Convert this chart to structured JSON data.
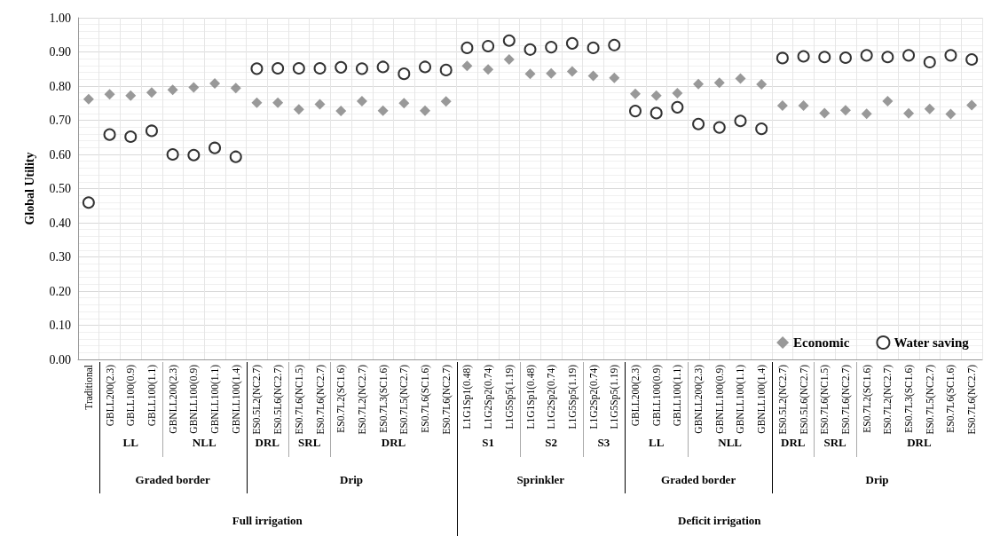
{
  "chart_data": {
    "type": "scatter",
    "ylabel": "Global Utility",
    "categories": [
      "Traditional",
      "GBLL200(2.3)",
      "GBLL100(0.9)",
      "GBLL100(1.1)",
      "GBNLL200(2.3)",
      "GBNLL100(0.9)",
      "GBNLL100(1.1)",
      "GBNLL100(1.4)",
      "ES0.5L2(NC2.7)",
      "ES0.5L6(NC2.7)",
      "ES0.7L6(NC1.5)",
      "ES0.7L6(NC2.7)",
      "ES0.7L2(SC1.6)",
      "ES0.7L2(NC2.7)",
      "ES0.7L3(SC1.6)",
      "ES0.7L5(NC2.7)",
      "ES0.7L6(SC1.6)",
      "ES0.7L6(NC2.7)",
      "L1G1Sp1(0.48)",
      "L1G2Sp2(0.74)",
      "L1G5Sp5(1.19)",
      "L1G1Sp1(0.48)",
      "L1G2Sp2(0.74)",
      "L1G5Sp5(1.19)",
      "L1G2Sp2(0.74)",
      "L1G5Sp5(1.19)",
      "GBLL200(2.3)",
      "GBLL100(0.9)",
      "GBLL100(1.1)",
      "GBNLL200(2.3)",
      "GBNLL100(0.9)",
      "GBNLL100(1.1)",
      "GBNLL100(1.4)",
      "ES0.5L2(NC2.7)",
      "ES0.5L6(NC2.7)",
      "ES0.7L6(NC1.5)",
      "ES0.7L6(NC2.7)",
      "ES0.7L2(SC1.6)",
      "ES0.7L2(NC2.7)",
      "ES0.7L3(SC1.6)",
      "ES0.7L5(NC2.7)",
      "ES0.7L6(SC1.6)",
      "ES0.7L6(NC2.7)"
    ],
    "series": [
      {
        "name": "Economic",
        "color": "#7f7f7f",
        "marker": "diamond",
        "values": [
          0.762,
          0.776,
          0.772,
          0.781,
          0.789,
          0.796,
          0.808,
          0.794,
          0.751,
          0.751,
          0.732,
          0.747,
          0.727,
          0.756,
          0.728,
          0.75,
          0.728,
          0.755,
          0.859,
          0.849,
          0.878,
          0.836,
          0.837,
          0.843,
          0.83,
          0.824,
          0.777,
          0.772,
          0.779,
          0.806,
          0.81,
          0.822,
          0.805,
          0.743,
          0.743,
          0.721,
          0.729,
          0.719,
          0.756,
          0.72,
          0.733,
          0.718,
          0.744
        ]
      },
      {
        "name": "Water saving",
        "color": "#000000",
        "marker": "circle",
        "values": [
          0.459,
          0.658,
          0.652,
          0.669,
          0.6,
          0.598,
          0.619,
          0.593,
          0.851,
          0.852,
          0.852,
          0.852,
          0.855,
          0.851,
          0.856,
          0.836,
          0.856,
          0.847,
          0.912,
          0.917,
          0.933,
          0.907,
          0.914,
          0.925,
          0.912,
          0.92,
          0.727,
          0.721,
          0.738,
          0.689,
          0.679,
          0.698,
          0.675,
          0.882,
          0.887,
          0.885,
          0.883,
          0.89,
          0.885,
          0.89,
          0.87,
          0.89,
          0.878
        ]
      }
    ],
    "ylim": [
      0,
      1
    ],
    "yticks": [
      {
        "value": 0,
        "label": "0.00"
      },
      {
        "value": 0.1,
        "label": "0.10"
      },
      {
        "value": 0.2,
        "label": "0.20"
      },
      {
        "value": 0.3,
        "label": "0.30"
      },
      {
        "value": 0.4,
        "label": "0.40"
      },
      {
        "value": 0.5,
        "label": "0.50"
      },
      {
        "value": 0.6,
        "label": "0.60"
      },
      {
        "value": 0.7,
        "label": "0.70"
      },
      {
        "value": 0.8,
        "label": "0.80"
      },
      {
        "value": 0.9,
        "label": "0.90"
      },
      {
        "value": 1,
        "label": "1.00"
      }
    ],
    "grid": true,
    "legend": "bottom right",
    "annotations": [
      "LL",
      "NLL",
      "DRL",
      "SRL",
      "DRL",
      "S1",
      "S2",
      "S3",
      "LL",
      "NLL",
      "DRL",
      "SRL",
      "DRL",
      "Graded border",
      "Drip",
      "Sprinkler",
      "Graded border",
      "Drip",
      "Full irrigation",
      "Deficit irrigation"
    ]
  }
}
